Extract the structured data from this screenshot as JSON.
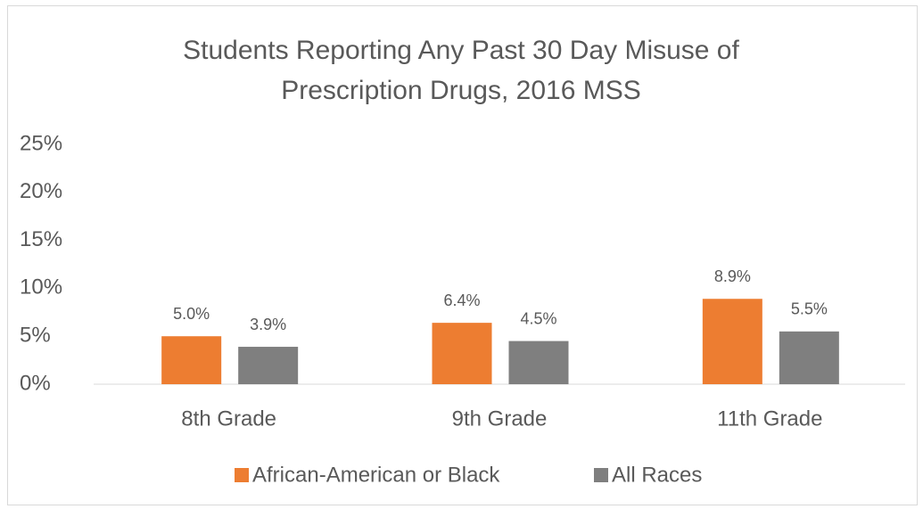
{
  "chart_data": {
    "type": "bar",
    "title": "Students Reporting Any Past 30 Day Misuse of Prescription Drugs, 2016 MSS",
    "categories": [
      "8th Grade",
      "9th Grade",
      "11th Grade"
    ],
    "series": [
      {
        "name": "African-American or Black",
        "color": "#ed7d31",
        "values": [
          5.0,
          6.4,
          8.9
        ],
        "value_labels": [
          "5.0%",
          "6.4%",
          "8.9%"
        ]
      },
      {
        "name": "All Races",
        "color": "#7f7f7f",
        "values": [
          3.9,
          4.5,
          5.5
        ],
        "value_labels": [
          "3.9%",
          "4.5%",
          "5.5%"
        ]
      }
    ],
    "ylim": [
      0,
      25
    ],
    "yticks": [
      {
        "value": 0,
        "label": "0%"
      },
      {
        "value": 5,
        "label": "5%"
      },
      {
        "value": 10,
        "label": "10%"
      },
      {
        "value": 15,
        "label": "15%"
      },
      {
        "value": 20,
        "label": "20%"
      },
      {
        "value": 25,
        "label": "25%"
      }
    ],
    "grid": false,
    "legend": "bottom"
  }
}
